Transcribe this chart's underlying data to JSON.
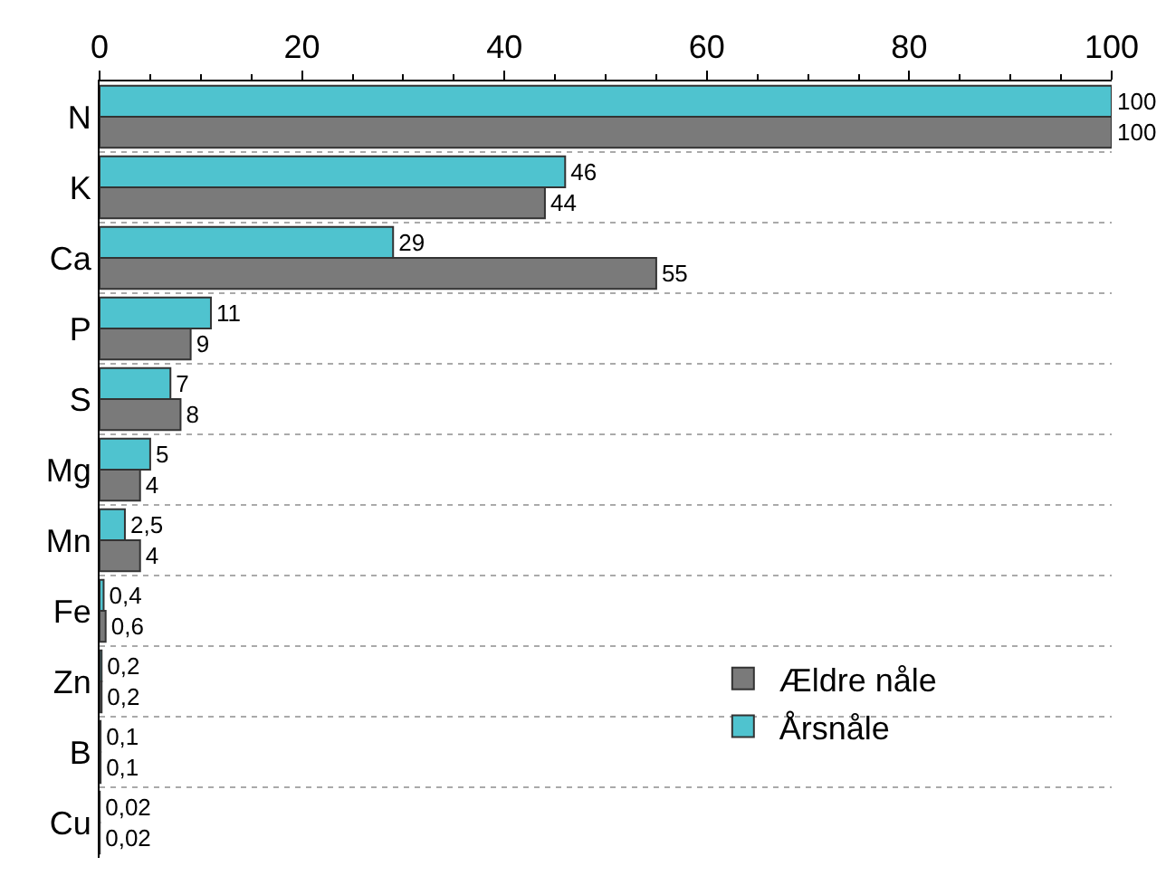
{
  "chart_data": {
    "type": "bar",
    "orientation": "horizontal",
    "categories": [
      "N",
      "K",
      "Ca",
      "P",
      "S",
      "Mg",
      "Mn",
      "Fe",
      "Zn",
      "B",
      "Cu"
    ],
    "series": [
      {
        "name": "Årsnåle",
        "color": "#4fc3cf",
        "values": [
          100,
          46,
          29,
          11,
          7,
          5,
          2.5,
          0.4,
          0.2,
          0.1,
          0.02
        ],
        "value_labels": [
          "100",
          "46",
          "29",
          "11",
          "7",
          "5",
          "2,5",
          "0,4",
          "0,2",
          "0,1",
          "0,02"
        ]
      },
      {
        "name": "Ældre nåle",
        "color": "#7a7a7a",
        "values": [
          100,
          44,
          55,
          9,
          8,
          4,
          4,
          0.6,
          0.2,
          0.1,
          0.02
        ],
        "value_labels": [
          "100",
          "44",
          "55",
          "9",
          "8",
          "4",
          "4",
          "0,6",
          "0,2",
          "0,1",
          "0,02"
        ]
      }
    ],
    "xlim": [
      0,
      100
    ],
    "xticks": [
      0,
      20,
      40,
      60,
      80,
      100
    ],
    "grid": "y",
    "legend": "bottom right"
  }
}
